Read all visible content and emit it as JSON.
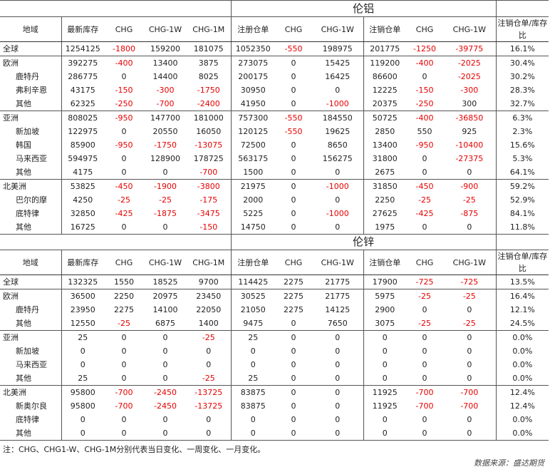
{
  "aluminum": {
    "title": "伦铝",
    "headers": [
      "地域",
      "最新库存",
      "CHG",
      "CHG-1W",
      "CHG-1M",
      "注册仓单",
      "CHG",
      "CHG-1W",
      "注销仓单",
      "CHG",
      "CHG-1W",
      "注销仓单/库存比"
    ],
    "groups": [
      {
        "rows": [
          {
            "region": "全球",
            "sub": false,
            "cells": [
              "1254125",
              "-1800",
              "159200",
              "181075",
              "1052350",
              "-550",
              "198975",
              "201775",
              "-1250",
              "-39775",
              "16.1%"
            ]
          }
        ]
      },
      {
        "rows": [
          {
            "region": "欧洲",
            "sub": false,
            "cells": [
              "392275",
              "-400",
              "13400",
              "3875",
              "273075",
              "0",
              "15425",
              "119200",
              "-400",
              "-2025",
              "30.4%"
            ]
          },
          {
            "region": "鹿特丹",
            "sub": true,
            "cells": [
              "286775",
              "0",
              "14400",
              "8025",
              "200175",
              "0",
              "16425",
              "86600",
              "0",
              "-2025",
              "30.2%"
            ]
          },
          {
            "region": "弗利辛恩",
            "sub": true,
            "cells": [
              "43175",
              "-150",
              "-300",
              "-1750",
              "30950",
              "0",
              "0",
              "12225",
              "-150",
              "-300",
              "28.3%"
            ]
          },
          {
            "region": "其他",
            "sub": true,
            "cells": [
              "62325",
              "-250",
              "-700",
              "-2400",
              "41950",
              "0",
              "-1000",
              "20375",
              "-250",
              "300",
              "32.7%"
            ]
          }
        ]
      },
      {
        "rows": [
          {
            "region": "亚洲",
            "sub": false,
            "cells": [
              "808025",
              "-950",
              "147700",
              "181000",
              "757300",
              "-550",
              "184550",
              "50725",
              "-400",
              "-36850",
              "6.3%"
            ]
          },
          {
            "region": "新加坡",
            "sub": true,
            "cells": [
              "122975",
              "0",
              "20550",
              "16050",
              "120125",
              "-550",
              "19625",
              "2850",
              "550",
              "925",
              "2.3%"
            ]
          },
          {
            "region": "韩国",
            "sub": true,
            "cells": [
              "85900",
              "-950",
              "-1750",
              "-13075",
              "72500",
              "0",
              "8650",
              "13400",
              "-950",
              "-10400",
              "15.6%"
            ]
          },
          {
            "region": "马来西亚",
            "sub": true,
            "cells": [
              "594975",
              "0",
              "128900",
              "178725",
              "563175",
              "0",
              "156275",
              "31800",
              "0",
              "-27375",
              "5.3%"
            ]
          },
          {
            "region": "其他",
            "sub": true,
            "cells": [
              "4175",
              "0",
              "0",
              "-700",
              "1500",
              "0",
              "0",
              "2675",
              "0",
              "0",
              "64.1%"
            ]
          }
        ]
      },
      {
        "rows": [
          {
            "region": "北美洲",
            "sub": false,
            "cells": [
              "53825",
              "-450",
              "-1900",
              "-3800",
              "21975",
              "0",
              "-1000",
              "31850",
              "-450",
              "-900",
              "59.2%"
            ]
          },
          {
            "region": "巴尔的摩",
            "sub": true,
            "cells": [
              "4250",
              "-25",
              "-25",
              "-175",
              "2000",
              "0",
              "0",
              "2250",
              "-25",
              "-25",
              "52.9%"
            ]
          },
          {
            "region": "底特律",
            "sub": true,
            "cells": [
              "32850",
              "-425",
              "-1875",
              "-3475",
              "5225",
              "0",
              "-1000",
              "27625",
              "-425",
              "-875",
              "84.1%"
            ]
          },
          {
            "region": "其他",
            "sub": true,
            "cells": [
              "16725",
              "0",
              "0",
              "-150",
              "14750",
              "0",
              "0",
              "1975",
              "0",
              "0",
              "11.8%"
            ]
          }
        ]
      }
    ]
  },
  "zinc": {
    "title": "伦锌",
    "headers": [
      "地域",
      "最新库存",
      "CHG",
      "CHG-1W",
      "CHG-1M",
      "注册仓单",
      "CHG",
      "CHG-1W",
      "注销仓单",
      "CHG",
      "CHG-1W",
      "注销仓单/库存比"
    ],
    "groups": [
      {
        "rows": [
          {
            "region": "全球",
            "sub": false,
            "cells": [
              "132325",
              "1550",
              "18525",
              "9700",
              "114425",
              "2275",
              "21775",
              "17900",
              "-725",
              "-725",
              "13.5%"
            ]
          }
        ]
      },
      {
        "rows": [
          {
            "region": "欧洲",
            "sub": false,
            "cells": [
              "36500",
              "2250",
              "20975",
              "23450",
              "30525",
              "2275",
              "21775",
              "5975",
              "-25",
              "-25",
              "16.4%"
            ]
          },
          {
            "region": "鹿特丹",
            "sub": true,
            "cells": [
              "23950",
              "2275",
              "14100",
              "22050",
              "21050",
              "2275",
              "14125",
              "2900",
              "0",
              "0",
              "12.1%"
            ]
          },
          {
            "region": "其他",
            "sub": true,
            "cells": [
              "12550",
              "-25",
              "6875",
              "1400",
              "9475",
              "0",
              "7650",
              "3075",
              "-25",
              "-25",
              "24.5%"
            ]
          }
        ]
      },
      {
        "rows": [
          {
            "region": "亚洲",
            "sub": false,
            "cells": [
              "25",
              "0",
              "0",
              "-25",
              "25",
              "0",
              "0",
              "0",
              "0",
              "0",
              "0.0%"
            ]
          },
          {
            "region": "新加坡",
            "sub": true,
            "cells": [
              "0",
              "0",
              "0",
              "0",
              "0",
              "0",
              "0",
              "0",
              "0",
              "0",
              "0.0%"
            ]
          },
          {
            "region": "马来西亚",
            "sub": true,
            "cells": [
              "0",
              "0",
              "0",
              "0",
              "0",
              "0",
              "0",
              "0",
              "0",
              "0",
              "0.0%"
            ]
          },
          {
            "region": "其他",
            "sub": true,
            "cells": [
              "25",
              "0",
              "0",
              "-25",
              "25",
              "0",
              "0",
              "0",
              "0",
              "0",
              "0.0%"
            ]
          }
        ]
      },
      {
        "rows": [
          {
            "region": "北美洲",
            "sub": false,
            "cells": [
              "95800",
              "-700",
              "-2450",
              "-13725",
              "83875",
              "0",
              "0",
              "11925",
              "-700",
              "-700",
              "12.4%"
            ]
          },
          {
            "region": "新奥尔良",
            "sub": true,
            "cells": [
              "95800",
              "-700",
              "-2450",
              "-13725",
              "83875",
              "0",
              "0",
              "11925",
              "-700",
              "-700",
              "12.4%"
            ]
          },
          {
            "region": "底特律",
            "sub": true,
            "cells": [
              "0",
              "0",
              "0",
              "0",
              "0",
              "0",
              "0",
              "0",
              "0",
              "0",
              "0.0%"
            ]
          },
          {
            "region": "其他",
            "sub": true,
            "cells": [
              "0",
              "0",
              "0",
              "0",
              "0",
              "0",
              "0",
              "0",
              "0",
              "0",
              "0.0%"
            ]
          }
        ]
      }
    ]
  },
  "footer": {
    "note": "注：CHG、CHG1-W、CHG-1M分别代表当日变化、一周变化、一月变化。",
    "source": "数据来源：盛达期货"
  },
  "colors": {
    "negative": "#e60000",
    "text": "#222222",
    "border": "#555555"
  }
}
